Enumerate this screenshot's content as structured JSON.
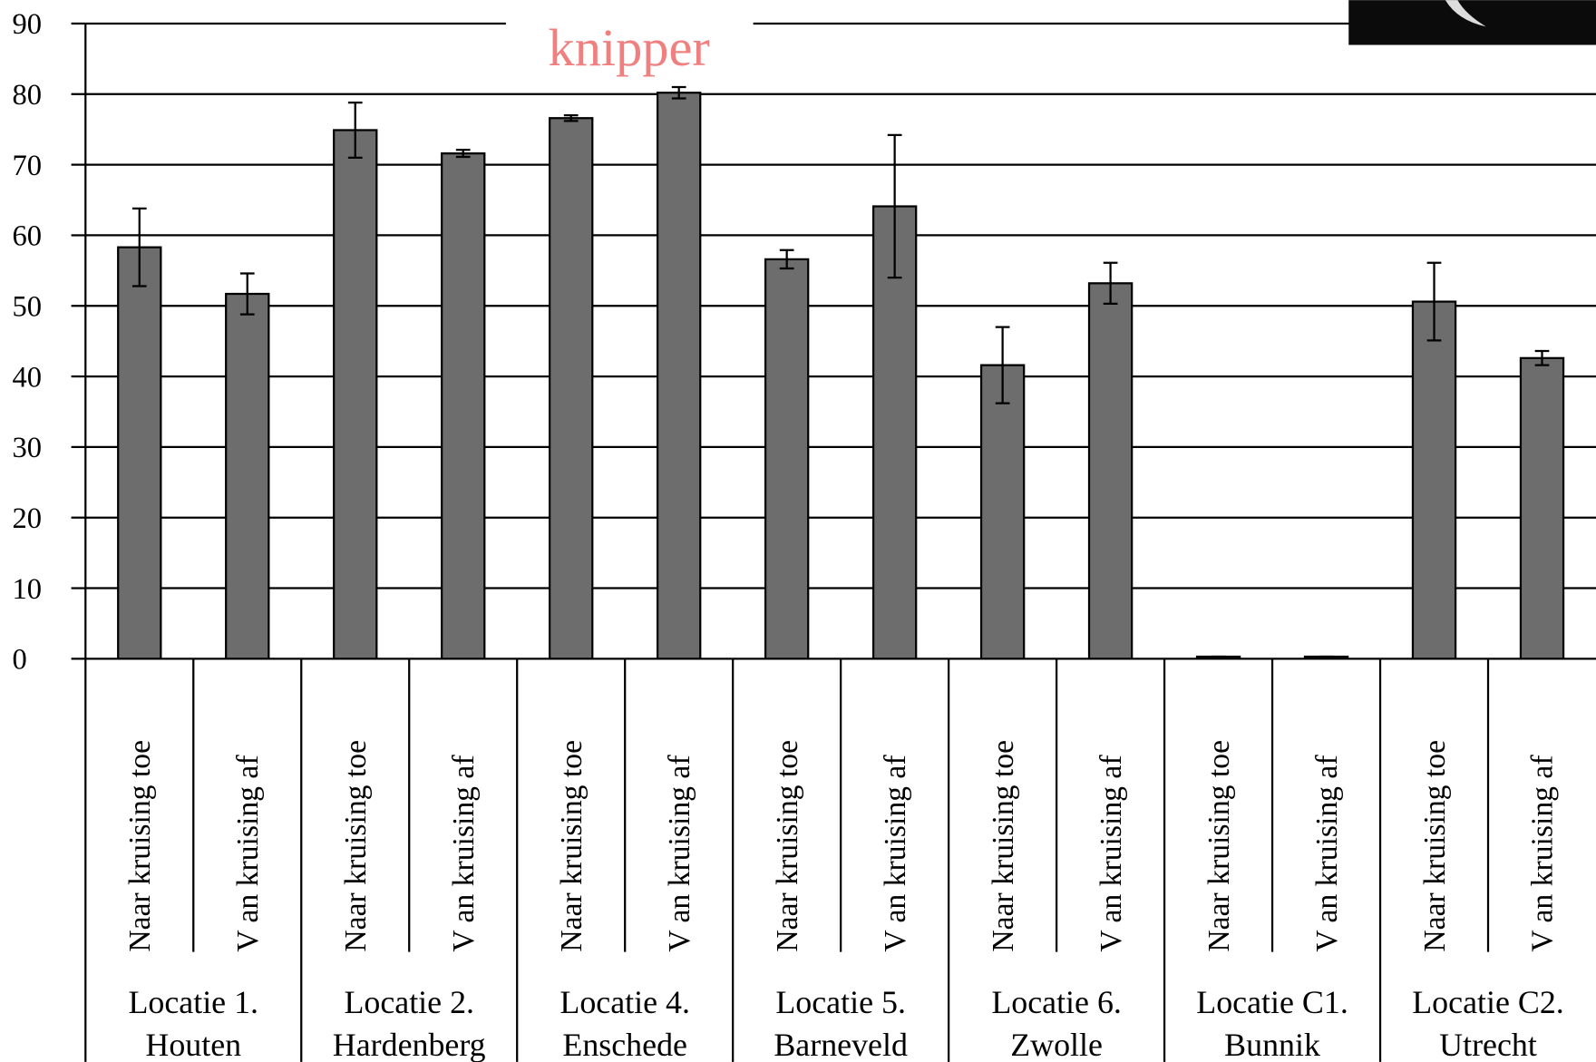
{
  "chart_data": {
    "type": "bar",
    "annotation": "knipper",
    "categories": [
      "Naar kruising toe",
      "V an kruising af",
      "Naar kruising toe",
      "V an kruising af",
      "Naar kruising toe",
      "V an kruising af",
      "Naar kruising toe",
      "V an kruising af",
      "Naar kruising toe",
      "V an kruising af",
      "Naar kruising toe",
      "V an kruising af",
      "Naar kruising toe",
      "V an kruising af"
    ],
    "groups": [
      {
        "label": "Locatie 1.",
        "place": "Houten"
      },
      {
        "label": "Locatie 2.",
        "place": "Hardenberg"
      },
      {
        "label": "Locatie 4.",
        "place": "Enschede"
      },
      {
        "label": "Locatie 5.",
        "place": "Barneveld"
      },
      {
        "label": "Locatie 6.",
        "place": "Zwolle"
      },
      {
        "label": "Locatie C1.",
        "place": "Bunnik"
      },
      {
        "label": "Locatie C2.",
        "place": "Utrecht"
      }
    ],
    "values": [
      58.3,
      51.7,
      74.9,
      71.6,
      76.6,
      80.2,
      56.6,
      64.1,
      41.6,
      53.2,
      0.3,
      0.3,
      50.6,
      42.6
    ],
    "errors": [
      5.5,
      2.9,
      3.9,
      0.5,
      0.4,
      0.8,
      1.3,
      10.1,
      5.4,
      2.9,
      0,
      0,
      5.5,
      1.0
    ],
    "color": "#6d6d6d",
    "ylim": [
      0,
      90
    ],
    "yticks": [
      0,
      10,
      20,
      30,
      40,
      50,
      60,
      70,
      80,
      90
    ],
    "grid": true
  }
}
